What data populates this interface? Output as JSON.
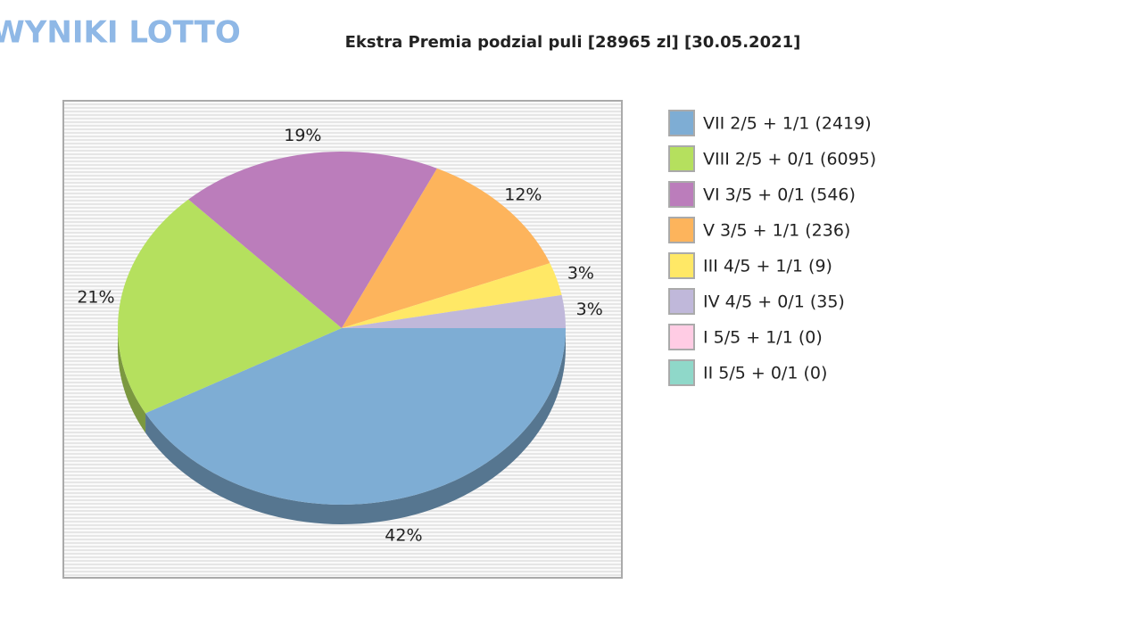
{
  "logo": "WYNIKI LOTTO",
  "chart_data": {
    "type": "pie",
    "title": "Ekstra Premia podzial puli [28965 zl] [30.05.2021]",
    "series": [
      {
        "name": "VII 2/5 + 1/1 (2419)",
        "color": "#7eadd4",
        "values": [
          42
        ],
        "value_labels": [
          "42%"
        ]
      },
      {
        "name": "VIII 2/5 + 0/1 (6095)",
        "color": "#b5e05e",
        "values": [
          21
        ],
        "value_labels": [
          "21%"
        ]
      },
      {
        "name": "VI 3/5 + 0/1 (546)",
        "color": "#bb7dbb",
        "values": [
          19
        ],
        "value_labels": [
          "19%"
        ]
      },
      {
        "name": "V 3/5 + 1/1 (236)",
        "color": "#fdb45c",
        "values": [
          12
        ],
        "value_labels": [
          "12%"
        ]
      },
      {
        "name": "III 4/5 + 1/1 (9)",
        "color": "#ffe866",
        "values": [
          3
        ],
        "value_labels": [
          "3%"
        ]
      },
      {
        "name": "IV 4/5 + 0/1 (35)",
        "color": "#c0b8da",
        "values": [
          3
        ],
        "value_labels": [
          "3%"
        ]
      },
      {
        "name": "I 5/5 + 1/1 (0)",
        "color": "#ffcce4",
        "values": [
          0
        ],
        "value_labels": [
          null
        ]
      },
      {
        "name": "II 5/5 + 0/1 (0)",
        "color": "#8fd8c9",
        "values": [
          0
        ],
        "value_labels": [
          null
        ]
      }
    ]
  }
}
